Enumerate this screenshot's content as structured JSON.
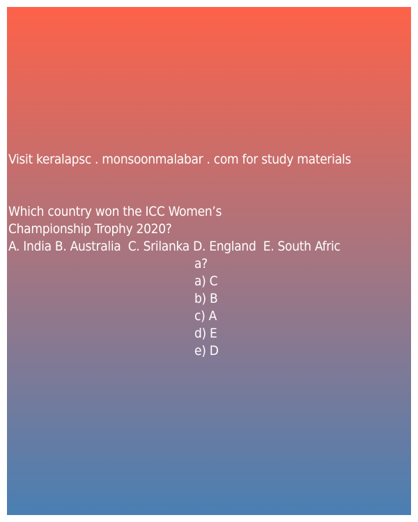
{
  "promo_text": "Visit keralapsc . monsoonmalabar . com for study materials",
  "question": {
    "line1": "Which country won the ICC Women’s",
    "line2": "Championship Trophy 2020?",
    "options_line_a": "A. India B. Australia  C. Srilanka D. England  E. South Afric",
    "options_line_b": "a?"
  },
  "answers": [
    "a) C",
    "b) B",
    "c) A",
    "d) E",
    "e) D"
  ],
  "colors": {
    "gradient_top": "#fe6249",
    "gradient_middle": "#a57581",
    "gradient_bottom": "#4a7fb3",
    "text": "#ffffff"
  }
}
